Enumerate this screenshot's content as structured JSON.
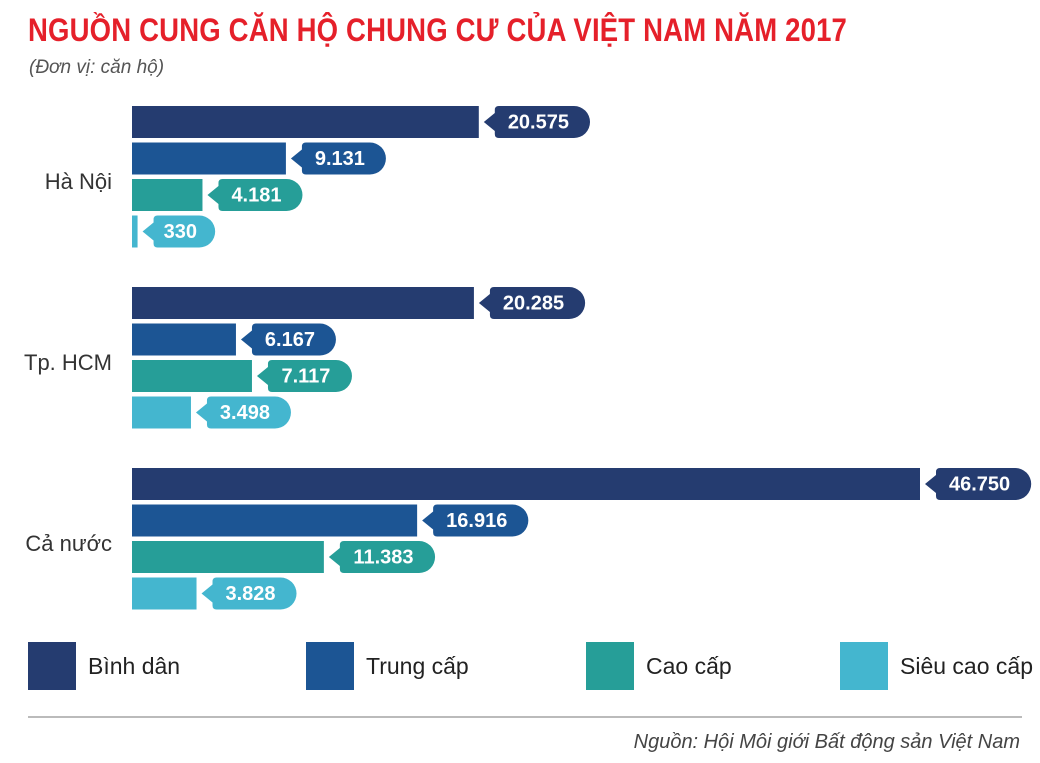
{
  "title": "NGUỒN CUNG CĂN HỘ CHUNG CƯ CỦA VIỆT NAM NĂM 2017",
  "subtitle": "(Đơn vị: căn hộ)",
  "source": "Nguồn: Hội Môi giới Bất động sản Việt Nam",
  "colors": {
    "title": "#e5202a",
    "series": [
      "#253c70",
      "#1c5594",
      "#269e98",
      "#44b6cf"
    ]
  },
  "chart_data": {
    "type": "bar",
    "orientation": "horizontal",
    "title": "NGUỒN CUNG CĂN HỘ CHUNG CƯ CỦA VIỆT NAM NĂM 2017",
    "subtitle": "(Đơn vị: căn hộ)",
    "categories": [
      "Hà Nội",
      "Tp. HCM",
      "Cả nước"
    ],
    "series": [
      {
        "name": "Bình dân",
        "values": [
          20575,
          20285,
          46750
        ],
        "labels": [
          "20.575",
          "20.285",
          "46.750"
        ]
      },
      {
        "name": "Trung cấp",
        "values": [
          9131,
          6167,
          16916
        ],
        "labels": [
          "9.131",
          "6.167",
          "16.916"
        ]
      },
      {
        "name": "Cao cấp",
        "values": [
          4181,
          7117,
          11383
        ],
        "labels": [
          "4.181",
          "7.117",
          "11.383"
        ]
      },
      {
        "name": "Siêu cao cấp",
        "values": [
          330,
          3498,
          3828
        ],
        "labels": [
          "330",
          "3.498",
          "3.828"
        ]
      }
    ],
    "xlim": [
      0,
      46750
    ],
    "grid": false,
    "legend_position": "bottom"
  }
}
